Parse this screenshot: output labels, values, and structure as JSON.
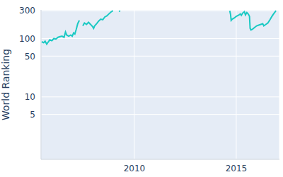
{
  "chart_data": {
    "type": "line",
    "y_label": "World Ranking",
    "log": "y",
    "grid": true,
    "color": "#1ac9c3",
    "x": [
      2005.45,
      2005.55,
      2005.62,
      2005.7,
      2005.78,
      2005.85,
      2005.95,
      2006.05,
      2006.15,
      2006.25,
      2006.35,
      2006.45,
      2006.55,
      2006.62,
      2006.68,
      2006.78,
      2006.88,
      2006.95,
      2007.02,
      2007.08,
      2007.15,
      2007.22,
      2007.3,
      2007.38,
      2007.47,
      2007.55,
      2007.65,
      2007.75,
      2007.85,
      2007.95,
      2008.0,
      2008.05,
      2008.15,
      2008.25,
      2008.35,
      2008.45,
      2008.55,
      2008.65,
      2008.75,
      2008.85,
      2008.95,
      2009.1,
      2009.25,
      2009.3,
      2012.0,
      2014.68,
      2014.72,
      2014.75,
      2014.8,
      2014.9,
      2015.0,
      2015.1,
      2015.2,
      2015.25,
      2015.32,
      2015.4,
      2015.45,
      2015.52,
      2015.6,
      2015.65,
      2015.68,
      2015.72,
      2015.8,
      2015.9,
      2016.0,
      2016.1,
      2016.2,
      2016.3,
      2016.35,
      2016.45,
      2016.55,
      2016.65,
      2016.75,
      2016.85,
      2016.95
    ],
    "values": [
      88,
      85,
      90,
      80,
      88,
      95,
      92,
      100,
      98,
      105,
      108,
      110,
      105,
      130,
      115,
      110,
      115,
      110,
      125,
      120,
      145,
      180,
      205,
      null,
      165,
      185,
      175,
      190,
      175,
      160,
      150,
      165,
      180,
      200,
      215,
      210,
      235,
      245,
      265,
      285,
      300,
      null,
      300,
      290,
      null,
      300,
      260,
      205,
      215,
      225,
      240,
      250,
      265,
      250,
      275,
      290,
      255,
      280,
      260,
      240,
      150,
      140,
      145,
      155,
      165,
      170,
      175,
      180,
      165,
      175,
      185,
      210,
      240,
      270,
      300
    ],
    "xlim": [
      2005.42,
      2017.12
    ],
    "xticks": [
      2010,
      2015
    ],
    "ylim": [
      0.85,
      310
    ],
    "yticks": [
      5,
      10,
      50,
      100,
      300
    ]
  }
}
